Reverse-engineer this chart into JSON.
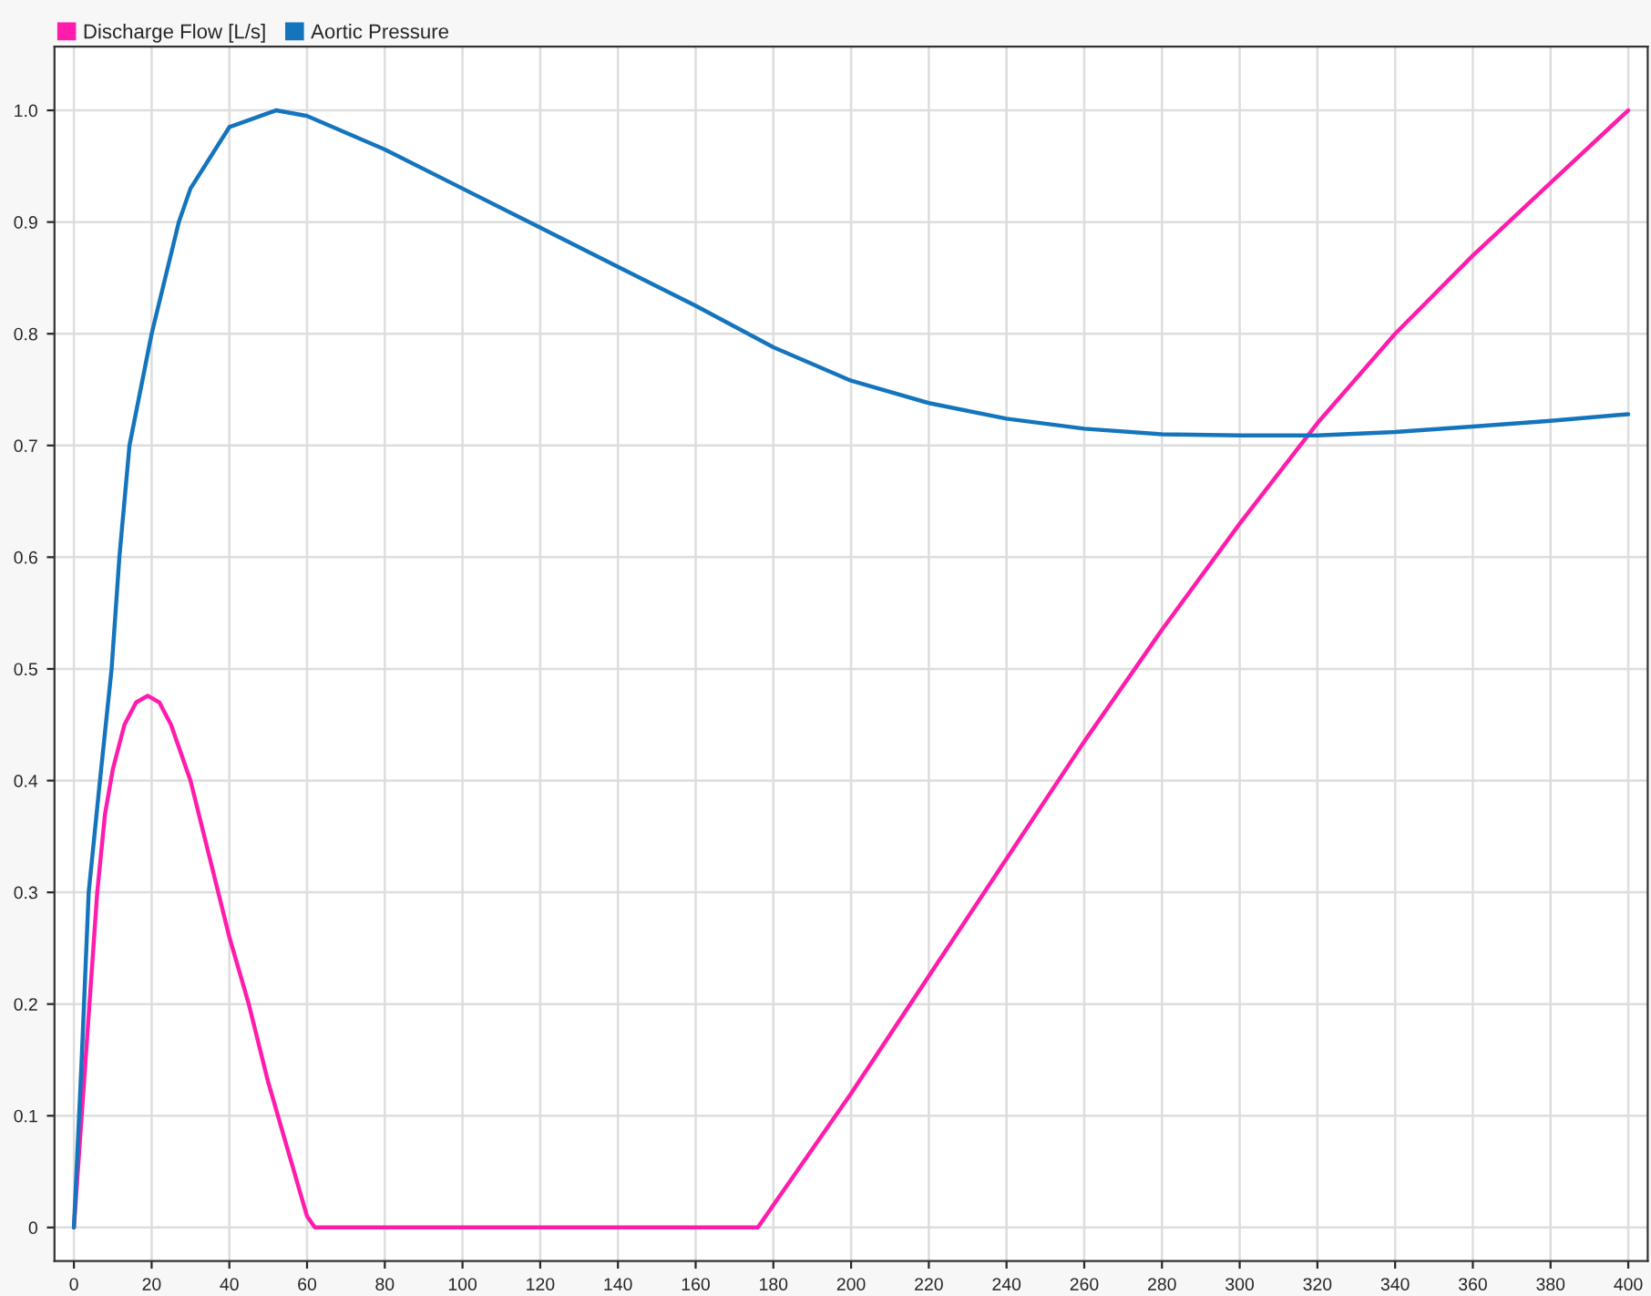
{
  "chart_data": {
    "type": "line",
    "legend": "top left",
    "grid": true,
    "marker": "none",
    "line_style": "solid",
    "xlim": [
      -5,
      405
    ],
    "ylim": [
      -0.03,
      1.057
    ],
    "xticks": [
      0,
      20,
      40,
      60,
      80,
      100,
      120,
      140,
      160,
      180,
      200,
      220,
      240,
      260,
      280,
      300,
      320,
      340,
      360,
      380,
      400
    ],
    "yticks": [
      {
        "value": 0,
        "label": "0"
      },
      0.1,
      0.2,
      0.3,
      0.4,
      0.5,
      0.6,
      0.7,
      0.8,
      0.9,
      {
        "value": 1,
        "label": "1.0"
      }
    ],
    "series": [
      {
        "name": "Discharge Flow [L/s]",
        "color": "#ff1cac",
        "x": [
          0,
          2,
          4,
          6,
          8,
          10,
          13,
          16,
          19,
          22,
          25,
          30,
          35,
          40,
          45,
          50,
          55,
          60,
          62,
          176,
          180,
          200,
          220,
          240,
          260,
          280,
          300,
          320,
          340,
          360,
          380,
          400
        ],
        "values": [
          0,
          0.1,
          0.2,
          0.3,
          0.37,
          0.41,
          0.45,
          0.47,
          0.476,
          0.47,
          0.45,
          0.4,
          0.33,
          0.26,
          0.2,
          0.13,
          0.07,
          0.01,
          0,
          0,
          0.02,
          0.12,
          0.225,
          0.33,
          0.435,
          0.535,
          0.63,
          0.72,
          0.8,
          0.87,
          0.935,
          1.0
        ]
      },
      {
        "name": "Aortic Pressure",
        "color": "#1475bd",
        "x": [
          0,
          2,
          3.8,
          6.7,
          9.7,
          11.7,
          14.3,
          20,
          27,
          30,
          40,
          52,
          60,
          80,
          100,
          120,
          140,
          160,
          180,
          200,
          220,
          240,
          260,
          280,
          300,
          320,
          340,
          360,
          380,
          400
        ],
        "values": [
          0,
          0.15,
          0.3,
          0.4,
          0.5,
          0.6,
          0.7,
          0.8,
          0.9,
          0.93,
          0.985,
          1.0,
          0.995,
          0.965,
          0.93,
          0.895,
          0.86,
          0.825,
          0.788,
          0.758,
          0.738,
          0.724,
          0.715,
          0.71,
          0.709,
          0.709,
          0.712,
          0.717,
          0.722,
          0.728
        ]
      }
    ]
  }
}
